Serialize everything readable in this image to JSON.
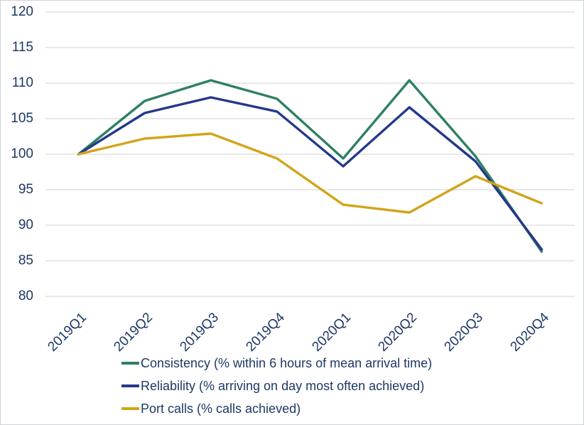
{
  "chart_data": {
    "type": "line",
    "title": "",
    "xlabel": "",
    "ylabel": "",
    "categories": [
      "2019Q1",
      "2019Q2",
      "2019Q3",
      "2019Q4",
      "2020Q1",
      "2020Q2",
      "2020Q3",
      "2020Q4"
    ],
    "series": [
      {
        "name": "Consistency (% within 6 hours of mean arrival time)",
        "color": "#2E8062",
        "values": [
          100,
          107.5,
          110.4,
          107.8,
          99.4,
          110.4,
          99.7,
          86.3
        ]
      },
      {
        "name": "Reliability (% arriving on day most often achieved)",
        "color": "#24388C",
        "values": [
          100,
          105.8,
          108,
          106,
          98.3,
          106.6,
          99,
          86.6
        ]
      },
      {
        "name": "Port calls (% calls achieved)",
        "color": "#D2A41A",
        "values": [
          100,
          102.2,
          102.9,
          99.4,
          92.9,
          91.8,
          96.9,
          93.1
        ]
      }
    ],
    "ylim": [
      80,
      120
    ],
    "yticks": [
      80,
      85,
      90,
      95,
      100,
      105,
      110,
      115,
      120
    ],
    "grid": true,
    "gridline_color": "#D9D9D9",
    "axis_text_color": "#1F3864",
    "legend_position": "bottom-center"
  }
}
